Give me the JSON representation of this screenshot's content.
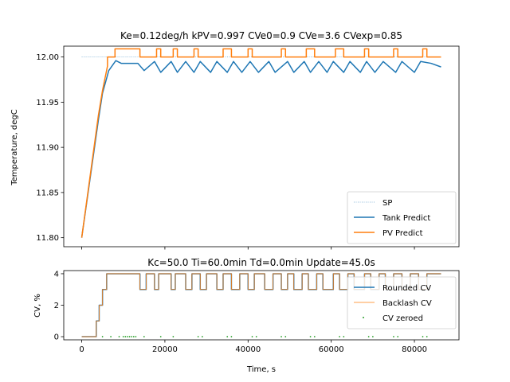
{
  "chart_data": [
    {
      "type": "line",
      "title": "Ke=0.12deg/h kPV=0.997 CVe0=0.9 CVe=3.6 CVexp=0.85",
      "xlabel": "",
      "ylabel": "Temperature, degC",
      "xlim": [
        -4320,
        90720
      ],
      "ylim": [
        11.79,
        12.012
      ],
      "yticks": [
        "11.80",
        "11.85",
        "11.90",
        "11.95",
        "12.00"
      ],
      "ytick_values": [
        11.8,
        11.85,
        11.9,
        11.95,
        12.0
      ],
      "grid": false,
      "legend_placement": "lower right",
      "series": [
        {
          "name": "SP",
          "color": "#1f77b4",
          "style": "dotted",
          "x": [
            0,
            86400
          ],
          "y": [
            12.0,
            12.0
          ]
        },
        {
          "name": "Tank Predict",
          "color": "#1f77b4",
          "style": "solid",
          "x": [
            0,
            4000,
            5000,
            6500,
            8200,
            9500,
            13500,
            15000,
            17500,
            19000,
            21500,
            23000,
            25000,
            27000,
            28500,
            31000,
            32500,
            35000,
            36500,
            38500,
            40500,
            42500,
            45000,
            46500,
            49500,
            51000,
            53500,
            55000,
            57000,
            59000,
            60500,
            63000,
            64500,
            67000,
            68500,
            70500,
            72500,
            75500,
            77000,
            80000,
            81500,
            84000,
            86400
          ],
          "y": [
            11.8,
            11.93,
            11.96,
            11.985,
            11.996,
            11.993,
            11.993,
            11.985,
            11.995,
            11.983,
            11.995,
            11.983,
            11.995,
            11.983,
            11.995,
            11.983,
            11.995,
            11.983,
            11.995,
            11.983,
            11.995,
            11.983,
            11.995,
            11.983,
            11.995,
            11.983,
            11.995,
            11.983,
            11.995,
            11.983,
            11.995,
            11.983,
            11.995,
            11.983,
            11.995,
            11.983,
            11.995,
            11.983,
            11.995,
            11.983,
            11.995,
            11.993,
            11.989
          ]
        },
        {
          "name": "PV Predict",
          "color": "#ff7f0e",
          "style": "solid",
          "x": [
            0,
            4000,
            5000,
            6200,
            6200,
            8000,
            8000,
            14000,
            14000,
            18000,
            18000,
            19000,
            19000,
            22000,
            22000,
            23000,
            23000,
            27000,
            27000,
            28000,
            28000,
            34000,
            34000,
            36000,
            36000,
            40000,
            40000,
            41000,
            41000,
            48000,
            48000,
            49000,
            49000,
            54000,
            54000,
            56000,
            56000,
            61000,
            61000,
            63000,
            63000,
            68000,
            68000,
            69000,
            69000,
            75000,
            75000,
            76000,
            76000,
            82000,
            82000,
            83000,
            83000,
            86400
          ],
          "y": [
            11.8,
            11.935,
            11.963,
            11.99,
            12.0,
            12.0,
            12.009,
            12.009,
            12.0,
            12.0,
            12.009,
            12.009,
            12.0,
            12.0,
            12.009,
            12.009,
            12.0,
            12.0,
            12.009,
            12.009,
            12.0,
            12.0,
            12.009,
            12.009,
            12.0,
            12.0,
            12.009,
            12.009,
            12.0,
            12.0,
            12.009,
            12.009,
            12.0,
            12.0,
            12.009,
            12.009,
            12.0,
            12.0,
            12.009,
            12.009,
            12.0,
            12.0,
            12.009,
            12.009,
            12.0,
            12.0,
            12.009,
            12.009,
            12.0,
            12.0,
            12.009,
            12.009,
            12.0,
            12.0
          ]
        }
      ]
    },
    {
      "type": "line",
      "title": "Kc=50.0 Ti=60.0min Td=0.0min Update=45.0s",
      "xlabel": "Time, s",
      "ylabel": "CV, %",
      "xlim": [
        -4320,
        90720
      ],
      "ylim": [
        -0.2,
        4.2
      ],
      "xticks": [
        "0",
        "20000",
        "40000",
        "60000",
        "80000"
      ],
      "xtick_values": [
        0,
        20000,
        40000,
        60000,
        80000
      ],
      "yticks": [
        "0",
        "2",
        "4"
      ],
      "ytick_values": [
        0,
        2,
        4
      ],
      "grid": false,
      "legend_placement": "center right",
      "series": [
        {
          "name": "Rounded CV",
          "color": "#1f77b4",
          "style": "step",
          "x": [
            0,
            3500,
            3500,
            4200,
            4200,
            5000,
            5000,
            6000,
            6000,
            8000,
            8000,
            14000,
            14000,
            15500,
            15500,
            17500,
            17500,
            18500,
            18500,
            21500,
            21500,
            22500,
            22500,
            25000,
            25000,
            26500,
            26500,
            28500,
            28500,
            30000,
            30000,
            32500,
            32500,
            34000,
            34000,
            36000,
            36000,
            38000,
            38000,
            40000,
            40000,
            41500,
            41500,
            44000,
            44000,
            46000,
            46000,
            48000,
            48000,
            49500,
            49500,
            51000,
            51000,
            53000,
            53000,
            54500,
            54500,
            56500,
            56500,
            58000,
            58000,
            60500,
            60500,
            62000,
            62000,
            64000,
            64000,
            65500,
            65500,
            68000,
            68000,
            69500,
            69500,
            71500,
            71500,
            73000,
            73000,
            75000,
            75000,
            77000,
            77000,
            79000,
            79000,
            81000,
            81000,
            83000,
            83000,
            86400
          ],
          "y": [
            0,
            0,
            1,
            1,
            2,
            2,
            3,
            3,
            4,
            4,
            4,
            4,
            3,
            3,
            4,
            4,
            3,
            3,
            4,
            4,
            3,
            3,
            4,
            4,
            3,
            3,
            4,
            4,
            3,
            3,
            4,
            4,
            3,
            3,
            4,
            4,
            3,
            3,
            4,
            4,
            3,
            3,
            4,
            4,
            3,
            3,
            4,
            4,
            3,
            3,
            4,
            4,
            3,
            3,
            4,
            4,
            3,
            3,
            4,
            4,
            3,
            3,
            4,
            4,
            3,
            3,
            4,
            4,
            3,
            3,
            4,
            4,
            3,
            3,
            4,
            4,
            3,
            3,
            4,
            4,
            3,
            3,
            4,
            4,
            3,
            3,
            4,
            4
          ]
        },
        {
          "name": "Backlash CV",
          "color": "#ff7f0e",
          "style": "step",
          "x": [
            0,
            3500,
            3500,
            4200,
            4200,
            5000,
            5000,
            6000,
            6000,
            8000,
            8000,
            14000,
            14000,
            15500,
            15500,
            17500,
            17500,
            18500,
            18500,
            21500,
            21500,
            22500,
            22500,
            25000,
            25000,
            26500,
            26500,
            28500,
            28500,
            30000,
            30000,
            32500,
            32500,
            34000,
            34000,
            36000,
            36000,
            38000,
            38000,
            40000,
            40000,
            41500,
            41500,
            44000,
            44000,
            46000,
            46000,
            48000,
            48000,
            49500,
            49500,
            51000,
            51000,
            53000,
            53000,
            54500,
            54500,
            56500,
            56500,
            58000,
            58000,
            60500,
            60500,
            62000,
            62000,
            64000,
            64000,
            65500,
            65500,
            68000,
            68000,
            69500,
            69500,
            71500,
            71500,
            73000,
            73000,
            75000,
            75000,
            77000,
            77000,
            79000,
            79000,
            81000,
            81000,
            83000,
            83000,
            86400
          ],
          "y": [
            0,
            0,
            1,
            1,
            2,
            2,
            3,
            3,
            4,
            4,
            4,
            4,
            3,
            3,
            4,
            4,
            3,
            3,
            4,
            4,
            3,
            3,
            4,
            4,
            3,
            3,
            4,
            4,
            3,
            3,
            4,
            4,
            3,
            3,
            4,
            4,
            3,
            3,
            4,
            4,
            3,
            3,
            4,
            4,
            3,
            3,
            4,
            4,
            3,
            3,
            4,
            4,
            3,
            3,
            4,
            4,
            3,
            3,
            4,
            4,
            3,
            3,
            4,
            4,
            3,
            3,
            4,
            4,
            3,
            3,
            4,
            4,
            3,
            3,
            4,
            4,
            3,
            3,
            4,
            4,
            3,
            3,
            4,
            4,
            3,
            3,
            4,
            4
          ]
        },
        {
          "name": "CV zeroed",
          "color": "#2ca02c",
          "style": "points",
          "x": [
            5000,
            7000,
            9000,
            10000,
            10500,
            11000,
            11500,
            12000,
            12500,
            13000,
            15000,
            19000,
            22000,
            28000,
            29000,
            35000,
            36000,
            41000,
            42000,
            48000,
            49000,
            55000,
            56000,
            62000,
            63000,
            69000,
            70000,
            75000,
            76000,
            82000,
            83000
          ],
          "y": [
            0,
            0,
            0,
            0,
            0,
            0,
            0,
            0,
            0,
            0,
            0,
            0,
            0,
            0,
            0,
            0,
            0,
            0,
            0,
            0,
            0,
            0,
            0,
            0,
            0,
            0,
            0,
            0,
            0,
            0,
            0
          ]
        }
      ]
    }
  ]
}
